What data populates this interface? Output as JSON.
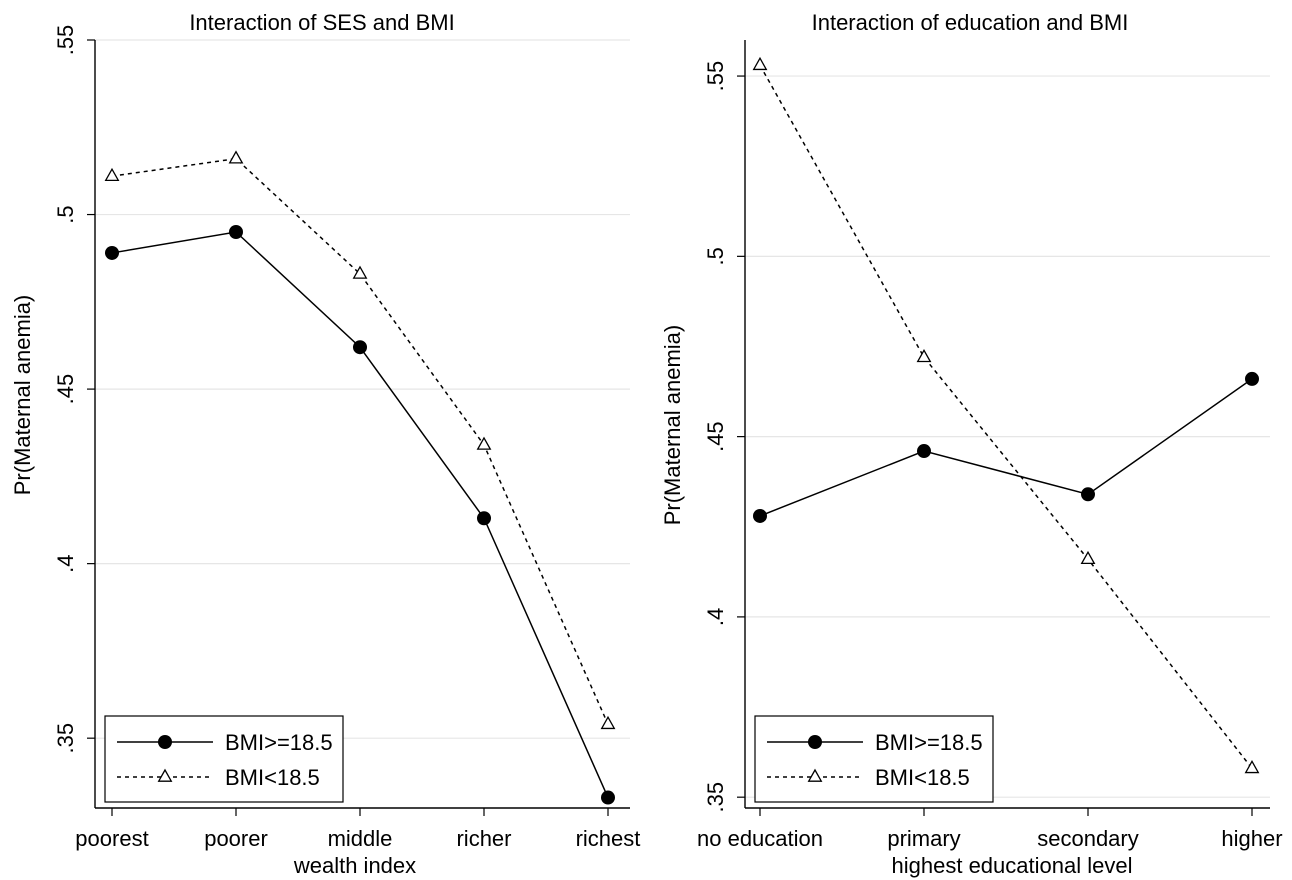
{
  "chart_data": [
    {
      "type": "line",
      "title": "Interaction of SES and BMI",
      "xlabel": "wealth index",
      "ylabel": "Pr(Maternal anemia)",
      "categories": [
        "poorest",
        "poorer",
        "middle",
        "richer",
        "richest"
      ],
      "ylim": [
        0.33,
        0.55
      ],
      "yticks": [
        0.35,
        0.4,
        0.45,
        0.5,
        0.55
      ],
      "ytick_labels": [
        ".35",
        ".4",
        ".45",
        ".5",
        ".55"
      ],
      "grid": true,
      "legend_position": "bottom-left",
      "series": [
        {
          "name": "BMI>=18.5",
          "marker": "filled-circle",
          "line": "solid",
          "values": [
            0.489,
            0.495,
            0.462,
            0.413,
            0.333
          ]
        },
        {
          "name": "BMI<18.5",
          "marker": "open-triangle",
          "line": "dashed",
          "values": [
            0.511,
            0.516,
            0.483,
            0.434,
            0.354
          ]
        }
      ]
    },
    {
      "type": "line",
      "title": "Interaction of education and BMI",
      "xlabel": "highest educational level",
      "ylabel": "Pr(Maternal anemia)",
      "categories": [
        "no education",
        "primary",
        "secondary",
        "higher"
      ],
      "ylim": [
        0.347,
        0.56
      ],
      "yticks": [
        0.35,
        0.4,
        0.45,
        0.5,
        0.55
      ],
      "ytick_labels": [
        ".35",
        ".4",
        ".45",
        ".5",
        ".55"
      ],
      "grid": true,
      "legend_position": "bottom-left",
      "series": [
        {
          "name": "BMI>=18.5",
          "marker": "filled-circle",
          "line": "solid",
          "values": [
            0.428,
            0.446,
            0.434,
            0.466
          ]
        },
        {
          "name": "BMI<18.5",
          "marker": "open-triangle",
          "line": "dashed",
          "values": [
            0.553,
            0.472,
            0.416,
            0.358
          ]
        }
      ]
    }
  ]
}
